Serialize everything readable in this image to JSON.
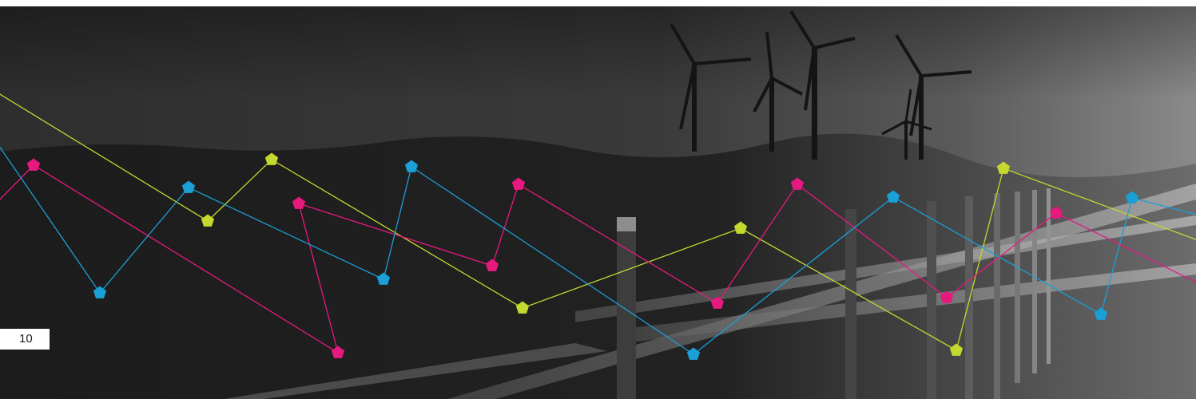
{
  "page": {
    "page_number": "10"
  },
  "photo": {
    "subject_icons": [
      "wind-turbine-icon",
      "fence-icon"
    ]
  },
  "overlay": {
    "colors": {
      "cyan": "#1a9fd6",
      "magenta": "#e6197f",
      "lime": "#c4d82e"
    }
  }
}
